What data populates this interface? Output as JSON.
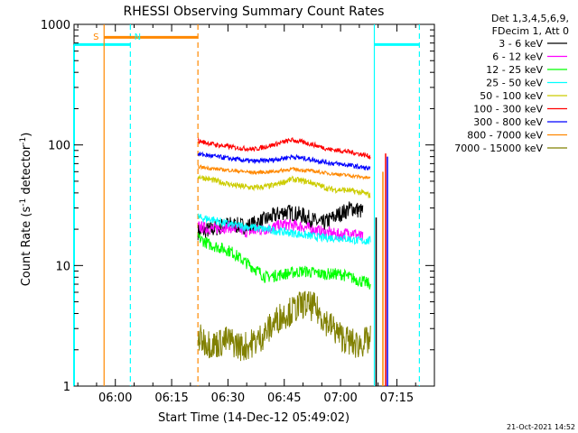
{
  "chart_data": {
    "type": "line",
    "title": "RHESSI Observing Summary Count Rates",
    "xlabel": "Start Time (14-Dec-12 05:49:02)",
    "ylabel_main": "Count Rate (s",
    "ylabel_sup1": "-1",
    "ylabel_mid": " detector",
    "ylabel_sup2": "-1",
    "ylabel_end": ")",
    "yscale": "log",
    "xlim": [
      "05:49",
      "07:25"
    ],
    "ylim": [
      1,
      1000
    ],
    "x_ticks": [
      "06:00",
      "06:15",
      "06:30",
      "06:45",
      "07:00",
      "07:15"
    ],
    "y_ticks": [
      "1",
      "10",
      "100",
      "1000"
    ],
    "grid": false,
    "legend_position": "top-right",
    "legend_header": [
      "Det 1,3,4,5,6,9,",
      "FDecim 1, Att 0"
    ],
    "series": [
      {
        "name": "3 - 6 keV",
        "color": "#000000",
        "x": [
          "06:22",
          "06:26",
          "06:30",
          "06:35",
          "06:40",
          "06:45",
          "06:50",
          "06:55",
          "07:00",
          "07:03",
          "07:06"
        ],
        "values": [
          19,
          20,
          22,
          21,
          24,
          28,
          26,
          22,
          27,
          30,
          28
        ]
      },
      {
        "name": "6 - 12 keV",
        "color": "#ff00ff",
        "x": [
          "06:22",
          "06:26",
          "06:30",
          "06:35",
          "06:40",
          "06:45",
          "06:50",
          "06:55",
          "07:00",
          "07:03",
          "07:06"
        ],
        "values": [
          21,
          20,
          21,
          19,
          20,
          22,
          21,
          19,
          18,
          19,
          17
        ]
      },
      {
        "name": "12 - 25 keV",
        "color": "#00ff00",
        "x": [
          "06:22",
          "06:25",
          "06:28",
          "06:31",
          "06:34",
          "06:37",
          "06:40",
          "06:45",
          "06:50",
          "06:55",
          "07:00",
          "07:05",
          "07:08"
        ],
        "values": [
          17,
          15,
          14,
          13,
          11,
          9.5,
          8,
          8.5,
          9,
          8.5,
          8.5,
          7.5,
          7
        ]
      },
      {
        "name": "25 - 50 keV",
        "color": "#00ffff",
        "x": [
          "06:22",
          "06:26",
          "06:30",
          "06:35",
          "06:40",
          "06:45",
          "06:50",
          "06:55",
          "07:00",
          "07:05",
          "07:08"
        ],
        "values": [
          25,
          24,
          22,
          21,
          20,
          19,
          18,
          17,
          17,
          16,
          16
        ]
      },
      {
        "name": "50 - 100 keV",
        "color": "#cccc00",
        "x": [
          "06:22",
          "06:27",
          "06:32",
          "06:37",
          "06:42",
          "06:47",
          "06:52",
          "06:57",
          "07:02",
          "07:06",
          "07:08"
        ],
        "values": [
          55,
          50,
          46,
          44,
          46,
          52,
          49,
          43,
          42,
          40,
          38
        ]
      },
      {
        "name": "100 - 300 keV",
        "color": "#ff0000",
        "x": [
          "06:22",
          "06:27",
          "06:32",
          "06:37",
          "06:42",
          "06:47",
          "06:52",
          "06:57",
          "07:02",
          "07:06",
          "07:08"
        ],
        "values": [
          108,
          100,
          95,
          92,
          100,
          110,
          102,
          92,
          88,
          83,
          80
        ]
      },
      {
        "name": "300 - 800 keV",
        "color": "#0000ff",
        "x": [
          "06:22",
          "06:27",
          "06:32",
          "06:37",
          "06:42",
          "06:47",
          "06:52",
          "06:57",
          "07:02",
          "07:06",
          "07:08"
        ],
        "values": [
          84,
          80,
          76,
          73,
          75,
          80,
          76,
          71,
          68,
          65,
          63
        ]
      },
      {
        "name": "800 - 7000 keV",
        "color": "#ff8800",
        "x": [
          "06:22",
          "06:27",
          "06:32",
          "06:37",
          "06:42",
          "06:47",
          "06:52",
          "06:57",
          "07:02",
          "07:06",
          "07:08"
        ],
        "values": [
          66,
          63,
          61,
          59,
          60,
          63,
          61,
          58,
          56,
          54,
          53
        ]
      },
      {
        "name": "7000 - 15000 keV",
        "color": "#808000",
        "x": [
          "06:22",
          "06:26",
          "06:30",
          "06:34",
          "06:38",
          "06:41",
          "06:44",
          "06:47",
          "06:50",
          "06:53",
          "06:56",
          "07:00",
          "07:04",
          "07:08"
        ],
        "values": [
          2.5,
          2.2,
          2.4,
          2.1,
          2.4,
          3.0,
          3.8,
          4.2,
          4.8,
          4.5,
          3.5,
          2.6,
          2.2,
          2.4
        ]
      }
    ],
    "annotations": [
      {
        "label": "S",
        "color": "#ff8800",
        "x": "05:57"
      },
      {
        "label": "N",
        "color": "#00ffff",
        "x": "06:04"
      }
    ],
    "timestamp": "21-Oct-2021 14:52"
  }
}
